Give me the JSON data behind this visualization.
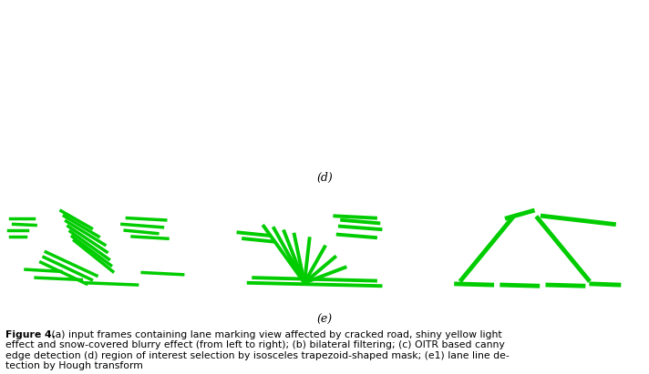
{
  "top_label": "(d)",
  "bottom_label": "(e)",
  "caption_line1_bold": "Figure 4.",
  "caption_line1_normal": " (a) input frames containing lane marking view affected by cracked road, shiny yellow light",
  "caption_line2": "effect and snow-covered blurry effect (from left to right); (b) bilateral filtering; (c) OITR based canny",
  "caption_line3": "edge detection (d) region of interest selection by isosceles trapezoid-shaped mask; (e1) lane line de-",
  "caption_line4": "tection by Hough transform",
  "bg_color": "#ffffff",
  "panel_bg": "#000000",
  "white_color": "#ffffff",
  "green_color": "#00cc00",
  "fig_width": 7.12,
  "fig_height": 4.11,
  "label_fontsize": 9,
  "caption_fontsize": 7.8
}
